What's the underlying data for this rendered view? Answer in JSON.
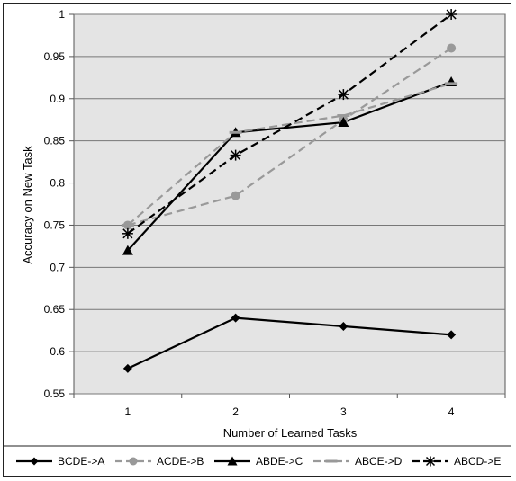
{
  "chart_data": {
    "type": "line",
    "title": "",
    "xlabel": "Number of Learned Tasks",
    "ylabel": "Accuracy on New Task",
    "x": [
      1,
      2,
      3,
      4
    ],
    "x_tick_labels": [
      "1",
      "2",
      "3",
      "4"
    ],
    "ylim": [
      0.55,
      1
    ],
    "y_ticks": [
      0.55,
      0.6,
      0.65,
      0.7,
      0.75,
      0.8,
      0.85,
      0.9,
      0.95,
      1
    ],
    "y_tick_labels": [
      "0.55",
      "0.6",
      "0.65",
      "0.7",
      "0.75",
      "0.8",
      "0.85",
      "0.9",
      "0.95",
      "1"
    ],
    "grid": "horizontal",
    "plot_background": "#e4e4e4",
    "legend_position": "bottom",
    "series": [
      {
        "name": "BCDE->A",
        "values": [
          0.58,
          0.64,
          0.63,
          0.62
        ],
        "color": "#000000",
        "dash": "solid",
        "marker": "diamond"
      },
      {
        "name": "ACDE->B",
        "values": [
          0.75,
          0.785,
          0.875,
          0.96
        ],
        "color": "#999999",
        "dash": "dashed",
        "marker": "circle"
      },
      {
        "name": "ABDE->C",
        "values": [
          0.72,
          0.86,
          0.872,
          0.92
        ],
        "color": "#000000",
        "dash": "solid",
        "marker": "triangle"
      },
      {
        "name": "ABCE->D",
        "values": [
          0.75,
          0.86,
          0.88,
          0.918
        ],
        "color": "#999999",
        "dash": "dashed",
        "marker": "dash"
      },
      {
        "name": "ABCD->E",
        "values": [
          0.74,
          0.833,
          0.905,
          1.0
        ],
        "color": "#000000",
        "dash": "dashed",
        "marker": "asterisk"
      }
    ]
  }
}
